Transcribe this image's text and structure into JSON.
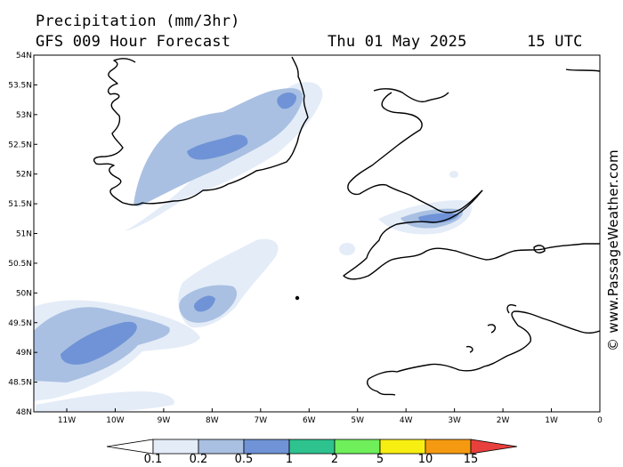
{
  "header": {
    "title": "Precipitation (mm/3hr)",
    "subtitle": "GFS 009 Hour Forecast",
    "date": "Thu 01 May 2025",
    "time": "15 UTC"
  },
  "credit": "© www.PassageWeather.com",
  "axes": {
    "lat_labels": [
      "54N",
      "53.5N",
      "53N",
      "52.5N",
      "52N",
      "51.5N",
      "51N",
      "50.5N",
      "50N",
      "49.5N",
      "49N",
      "48.5N",
      "48N"
    ],
    "lon_labels": [
      "11W",
      "10W",
      "9W",
      "8W",
      "7W",
      "6W",
      "5W",
      "4W",
      "3W",
      "2W",
      "1W",
      "0"
    ]
  },
  "legend": {
    "labels": [
      "0.1",
      "0.2",
      "0.5",
      "1",
      "2",
      "5",
      "10",
      "15"
    ],
    "colors": [
      "#ffffff",
      "#e4ecf8",
      "#a9c0e2",
      "#6f93d6",
      "#2ec28f",
      "#6fef5a",
      "#f7ee12",
      "#f59a10",
      "#e8403c"
    ]
  },
  "map_colors": {
    "light": "#e4ecf8",
    "medium": "#a9c0e2",
    "dark": "#6f93d6",
    "coast": "#000000"
  }
}
